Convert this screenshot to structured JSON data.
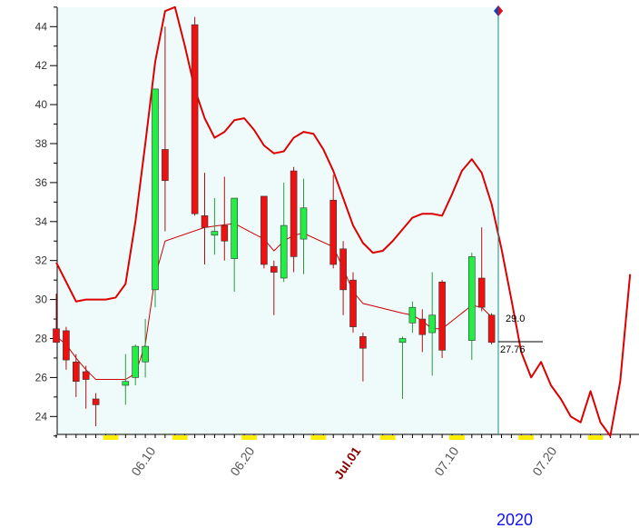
{
  "chart_data": {
    "type": "candlestick",
    "year_label": "2020",
    "y_ticks": [
      24,
      26,
      28,
      30,
      32,
      34,
      36,
      38,
      40,
      42,
      44
    ],
    "ylim": [
      23,
      45
    ],
    "x_labels": [
      "06.10",
      "06.20",
      "Jul.01",
      "07.10",
      "07.20"
    ],
    "highlight_label": "Jul.01",
    "price_labels": {
      "upper": "29.0",
      "lower": "27.76"
    },
    "colors": {
      "up": "#22ee44",
      "down": "#ee1111",
      "band": "#dd0000",
      "ma": "#cc0000",
      "shade": "#effbfb",
      "cursor": "#1a8a8a",
      "axis_marker": "#ffee00"
    },
    "candles": [
      {
        "d": 1,
        "o": 28.5,
        "h": 30.3,
        "l": 27.9,
        "c": 27.8
      },
      {
        "d": 2,
        "o": 28.4,
        "h": 28.6,
        "l": 26.4,
        "c": 26.9
      },
      {
        "d": 3,
        "o": 26.8,
        "h": 27.2,
        "l": 25.0,
        "c": 25.8
      },
      {
        "d": 4,
        "o": 26.3,
        "h": 26.6,
        "l": 24.4,
        "c": 25.9
      },
      {
        "d": 5,
        "o": 24.9,
        "h": 25.2,
        "l": 23.5,
        "c": 24.6
      },
      {
        "d": 8,
        "o": 25.6,
        "h": 27.2,
        "l": 24.6,
        "c": 25.8
      },
      {
        "d": 9,
        "o": 26.0,
        "h": 27.7,
        "l": 25.6,
        "c": 27.6
      },
      {
        "d": 10,
        "o": 26.8,
        "h": 29.0,
        "l": 26.0,
        "c": 27.6
      },
      {
        "d": 11,
        "o": 30.5,
        "h": 40.8,
        "l": 29.6,
        "c": 40.8
      },
      {
        "d": 12,
        "o": 37.7,
        "h": 44.0,
        "l": 33.5,
        "c": 36.1
      },
      {
        "d": 15,
        "o": 44.1,
        "h": 44.5,
        "l": 34.3,
        "c": 34.4
      },
      {
        "d": 16,
        "o": 34.3,
        "h": 36.5,
        "l": 31.8,
        "c": 33.7
      },
      {
        "d": 17,
        "o": 33.3,
        "h": 35.2,
        "l": 32.3,
        "c": 33.5
      },
      {
        "d": 18,
        "o": 33.8,
        "h": 36.3,
        "l": 32.0,
        "c": 33.0
      },
      {
        "d": 19,
        "o": 32.1,
        "h": 35.2,
        "l": 30.4,
        "c": 35.2
      },
      {
        "d": 22,
        "o": 35.3,
        "h": 35.3,
        "l": 31.6,
        "c": 31.8
      },
      {
        "d": 23,
        "o": 31.7,
        "h": 32.0,
        "l": 29.2,
        "c": 31.4
      },
      {
        "d": 24,
        "o": 31.1,
        "h": 36.0,
        "l": 30.9,
        "c": 33.8
      },
      {
        "d": 25,
        "o": 36.6,
        "h": 36.8,
        "l": 31.4,
        "c": 32.2
      },
      {
        "d": 26,
        "o": 33.1,
        "h": 36.2,
        "l": 31.3,
        "c": 34.7
      },
      {
        "d": 29,
        "o": 35.1,
        "h": 36.4,
        "l": 31.6,
        "c": 31.8
      },
      {
        "d": 30,
        "o": 32.6,
        "h": 33.0,
        "l": 29.2,
        "c": 30.5
      },
      {
        "d": 31,
        "o": 31.0,
        "h": 31.4,
        "l": 28.3,
        "c": 28.6
      },
      {
        "d": 32,
        "o": 28.1,
        "h": 28.3,
        "l": 25.8,
        "c": 27.5
      },
      {
        "d": 36,
        "o": 27.8,
        "h": 28.1,
        "l": 24.9,
        "c": 28.0
      },
      {
        "d": 37,
        "o": 28.8,
        "h": 29.9,
        "l": 28.3,
        "c": 29.6
      },
      {
        "d": 38,
        "o": 29.0,
        "h": 29.5,
        "l": 27.3,
        "c": 28.2
      },
      {
        "d": 39,
        "o": 28.3,
        "h": 31.4,
        "l": 26.1,
        "c": 29.2
      },
      {
        "d": 40,
        "o": 30.9,
        "h": 31.0,
        "l": 27.0,
        "c": 27.4
      },
      {
        "d": 43,
        "o": 27.9,
        "h": 32.4,
        "l": 26.9,
        "c": 32.2
      },
      {
        "d": 44,
        "o": 31.1,
        "h": 33.7,
        "l": 29.4,
        "c": 29.6
      },
      {
        "d": 45,
        "o": 29.2,
        "h": 29.3,
        "l": 27.7,
        "c": 27.8
      }
    ],
    "band_line": [
      {
        "d": 1,
        "v": 31.9
      },
      {
        "d": 3,
        "v": 29.9
      },
      {
        "d": 4,
        "v": 30.0
      },
      {
        "d": 6,
        "v": 30.0
      },
      {
        "d": 7,
        "v": 30.1
      },
      {
        "d": 8,
        "v": 30.8
      },
      {
        "d": 9,
        "v": 34.0
      },
      {
        "d": 10,
        "v": 38.0
      },
      {
        "d": 11,
        "v": 42.2
      },
      {
        "d": 12,
        "v": 44.8
      },
      {
        "d": 13,
        "v": 45.0
      },
      {
        "d": 14,
        "v": 43.0
      },
      {
        "d": 15,
        "v": 40.8
      },
      {
        "d": 16,
        "v": 39.3
      },
      {
        "d": 17,
        "v": 38.3
      },
      {
        "d": 18,
        "v": 38.6
      },
      {
        "d": 19,
        "v": 39.2
      },
      {
        "d": 20,
        "v": 39.3
      },
      {
        "d": 21,
        "v": 38.7
      },
      {
        "d": 22,
        "v": 37.9
      },
      {
        "d": 23,
        "v": 37.5
      },
      {
        "d": 24,
        "v": 37.6
      },
      {
        "d": 25,
        "v": 38.3
      },
      {
        "d": 26,
        "v": 38.6
      },
      {
        "d": 27,
        "v": 38.5
      },
      {
        "d": 28,
        "v": 37.7
      },
      {
        "d": 29,
        "v": 36.6
      },
      {
        "d": 30,
        "v": 35.2
      },
      {
        "d": 31,
        "v": 33.8
      },
      {
        "d": 32,
        "v": 32.9
      },
      {
        "d": 33,
        "v": 32.4
      },
      {
        "d": 34,
        "v": 32.5
      },
      {
        "d": 35,
        "v": 33.0
      },
      {
        "d": 36,
        "v": 33.6
      },
      {
        "d": 37,
        "v": 34.2
      },
      {
        "d": 38,
        "v": 34.4
      },
      {
        "d": 39,
        "v": 34.4
      },
      {
        "d": 40,
        "v": 34.3
      },
      {
        "d": 41,
        "v": 35.4
      },
      {
        "d": 42,
        "v": 36.6
      },
      {
        "d": 43,
        "v": 37.2
      },
      {
        "d": 44,
        "v": 36.5
      },
      {
        "d": 45,
        "v": 34.9
      },
      {
        "d": 46,
        "v": 32.6
      },
      {
        "d": 47,
        "v": 30.0
      },
      {
        "d": 48,
        "v": 27.3
      },
      {
        "d": 49,
        "v": 26.0
      },
      {
        "d": 50,
        "v": 26.8
      },
      {
        "d": 51,
        "v": 25.6
      },
      {
        "d": 52,
        "v": 24.9
      },
      {
        "d": 53,
        "v": 24.0
      },
      {
        "d": 54,
        "v": 23.7
      },
      {
        "d": 55,
        "v": 25.3
      },
      {
        "d": 56,
        "v": 23.7
      },
      {
        "d": 57,
        "v": 23.0
      },
      {
        "d": 58,
        "v": 25.8
      },
      {
        "d": 59,
        "v": 31.3
      }
    ],
    "ma_line": [
      {
        "d": 1,
        "v": 28.1
      },
      {
        "d": 2,
        "v": 27.7
      },
      {
        "d": 3,
        "v": 27.0
      },
      {
        "d": 4,
        "v": 26.4
      },
      {
        "d": 5,
        "v": 25.9
      },
      {
        "d": 8,
        "v": 25.9
      },
      {
        "d": 9,
        "v": 26.2
      },
      {
        "d": 10,
        "v": 27.7
      },
      {
        "d": 11,
        "v": 31.2
      },
      {
        "d": 12,
        "v": 33.0
      },
      {
        "d": 16,
        "v": 33.7
      },
      {
        "d": 19,
        "v": 33.9
      },
      {
        "d": 22,
        "v": 33.1
      },
      {
        "d": 23,
        "v": 32.5
      },
      {
        "d": 24,
        "v": 33.0
      },
      {
        "d": 25,
        "v": 33.3
      },
      {
        "d": 26,
        "v": 33.4
      },
      {
        "d": 29,
        "v": 32.7
      },
      {
        "d": 30,
        "v": 31.6
      },
      {
        "d": 31,
        "v": 30.4
      },
      {
        "d": 32,
        "v": 29.8
      },
      {
        "d": 36,
        "v": 29.3
      },
      {
        "d": 37,
        "v": 29.2
      },
      {
        "d": 38,
        "v": 28.9
      },
      {
        "d": 39,
        "v": 28.5
      },
      {
        "d": 40,
        "v": 28.5
      },
      {
        "d": 43,
        "v": 29.7
      },
      {
        "d": 44,
        "v": 29.6
      },
      {
        "d": 45,
        "v": 29.1
      }
    ]
  }
}
